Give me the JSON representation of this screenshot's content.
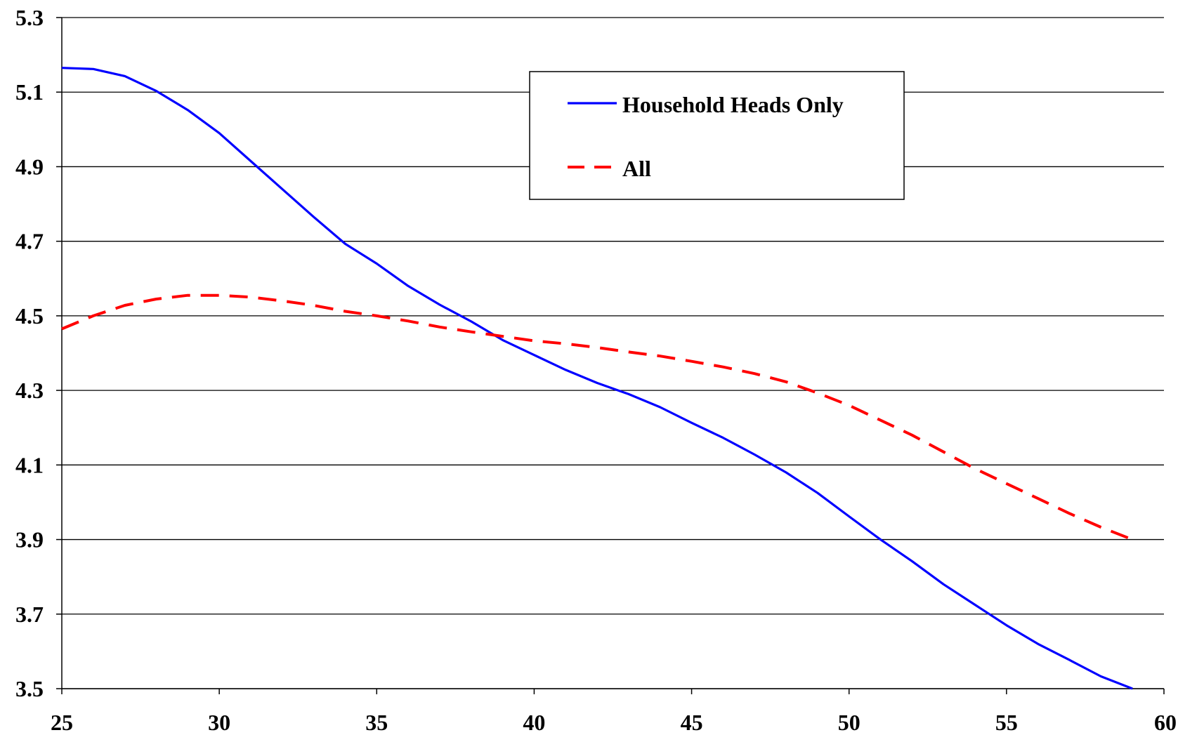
{
  "chart_data": {
    "type": "line",
    "title": "",
    "xlabel": "",
    "ylabel": "",
    "xlim": [
      25,
      60
    ],
    "ylim": [
      3.5,
      5.3
    ],
    "x_ticks": [
      25,
      30,
      35,
      40,
      45,
      50,
      55,
      60
    ],
    "y_ticks": [
      3.5,
      3.7,
      3.9,
      4.1,
      4.3,
      4.5,
      4.7,
      4.9,
      5.1,
      5.3
    ],
    "x_tick_labels": [
      "25",
      "30",
      "35",
      "40",
      "45",
      "50",
      "55",
      "60"
    ],
    "y_tick_labels": [
      "3.5",
      "3.7",
      "3.9",
      "4.1",
      "4.3",
      "4.5",
      "4.7",
      "4.9",
      "5.1",
      "5.3"
    ],
    "grid": "horizontal",
    "legend_position": "top-center",
    "x": [
      25,
      26,
      27,
      28,
      29,
      30,
      31,
      32,
      33,
      34,
      35,
      36,
      37,
      38,
      39,
      40,
      41,
      42,
      43,
      44,
      45,
      46,
      47,
      48,
      49,
      50,
      51,
      52,
      53,
      54,
      55,
      56,
      57,
      58,
      59
    ],
    "series": [
      {
        "name": "Household Heads Only",
        "color": "#0000ff",
        "line_style": "solid",
        "values": [
          5.165,
          5.162,
          5.143,
          5.103,
          5.052,
          4.99,
          4.915,
          4.84,
          4.765,
          4.693,
          4.64,
          4.58,
          4.53,
          4.485,
          4.435,
          4.395,
          4.355,
          4.32,
          4.29,
          4.255,
          4.213,
          4.173,
          4.128,
          4.08,
          4.025,
          3.962,
          3.9,
          3.842,
          3.78,
          3.725,
          3.67,
          3.62,
          3.577,
          3.533,
          3.5
        ]
      },
      {
        "name": "All",
        "color": "#ff0000",
        "line_style": "dashed",
        "values": [
          4.465,
          4.5,
          4.528,
          4.545,
          4.555,
          4.555,
          4.55,
          4.54,
          4.528,
          4.512,
          4.5,
          4.486,
          4.47,
          4.457,
          4.445,
          4.433,
          4.425,
          4.415,
          4.403,
          4.392,
          4.378,
          4.363,
          4.345,
          4.323,
          4.293,
          4.26,
          4.22,
          4.18,
          4.135,
          4.09,
          4.05,
          4.01,
          3.97,
          3.933,
          3.9
        ]
      }
    ]
  }
}
